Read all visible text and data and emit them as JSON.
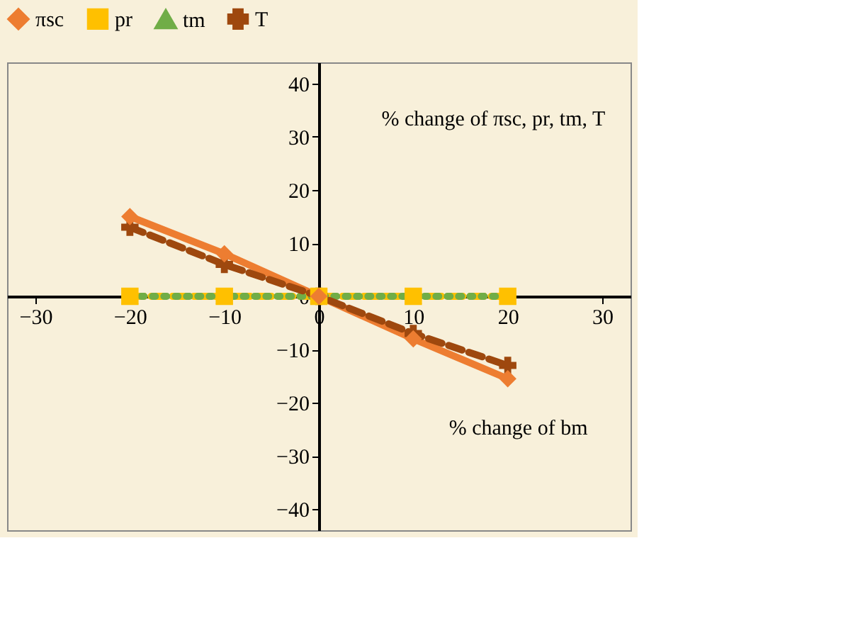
{
  "chart_data": {
    "type": "line",
    "x": [
      -20,
      -10,
      0,
      10,
      20
    ],
    "series": [
      {
        "name": "πsc",
        "color": "#ed7d31",
        "values": [
          15,
          8,
          0,
          -8,
          -15.5
        ],
        "marker": "diamond",
        "line_style": "solid"
      },
      {
        "name": "pr",
        "color": "#ffc000",
        "values": [
          0,
          0,
          0,
          0,
          0
        ],
        "marker": "square",
        "line_style": "dashed"
      },
      {
        "name": "tm",
        "color": "#70ad47",
        "values": [
          0,
          0,
          0,
          0,
          0
        ],
        "marker": "triangle",
        "line_style": "dotted"
      },
      {
        "name": "T",
        "color": "#9e480e",
        "values": [
          13,
          6,
          0,
          -7,
          -13
        ],
        "marker": "cross",
        "line_style": "dashed"
      }
    ],
    "xlim": [
      -33,
      33
    ],
    "xticks": [
      -30,
      -20,
      -10,
      0,
      10,
      20,
      30
    ],
    "ylim": [
      -44,
      44
    ],
    "yticks": [
      -40,
      -30,
      -20,
      -10,
      0,
      10,
      20,
      30,
      40
    ],
    "grid": false,
    "legend": "top",
    "annotations": [
      "% change of πsc, pr, tm, T",
      "% change of bm"
    ]
  }
}
